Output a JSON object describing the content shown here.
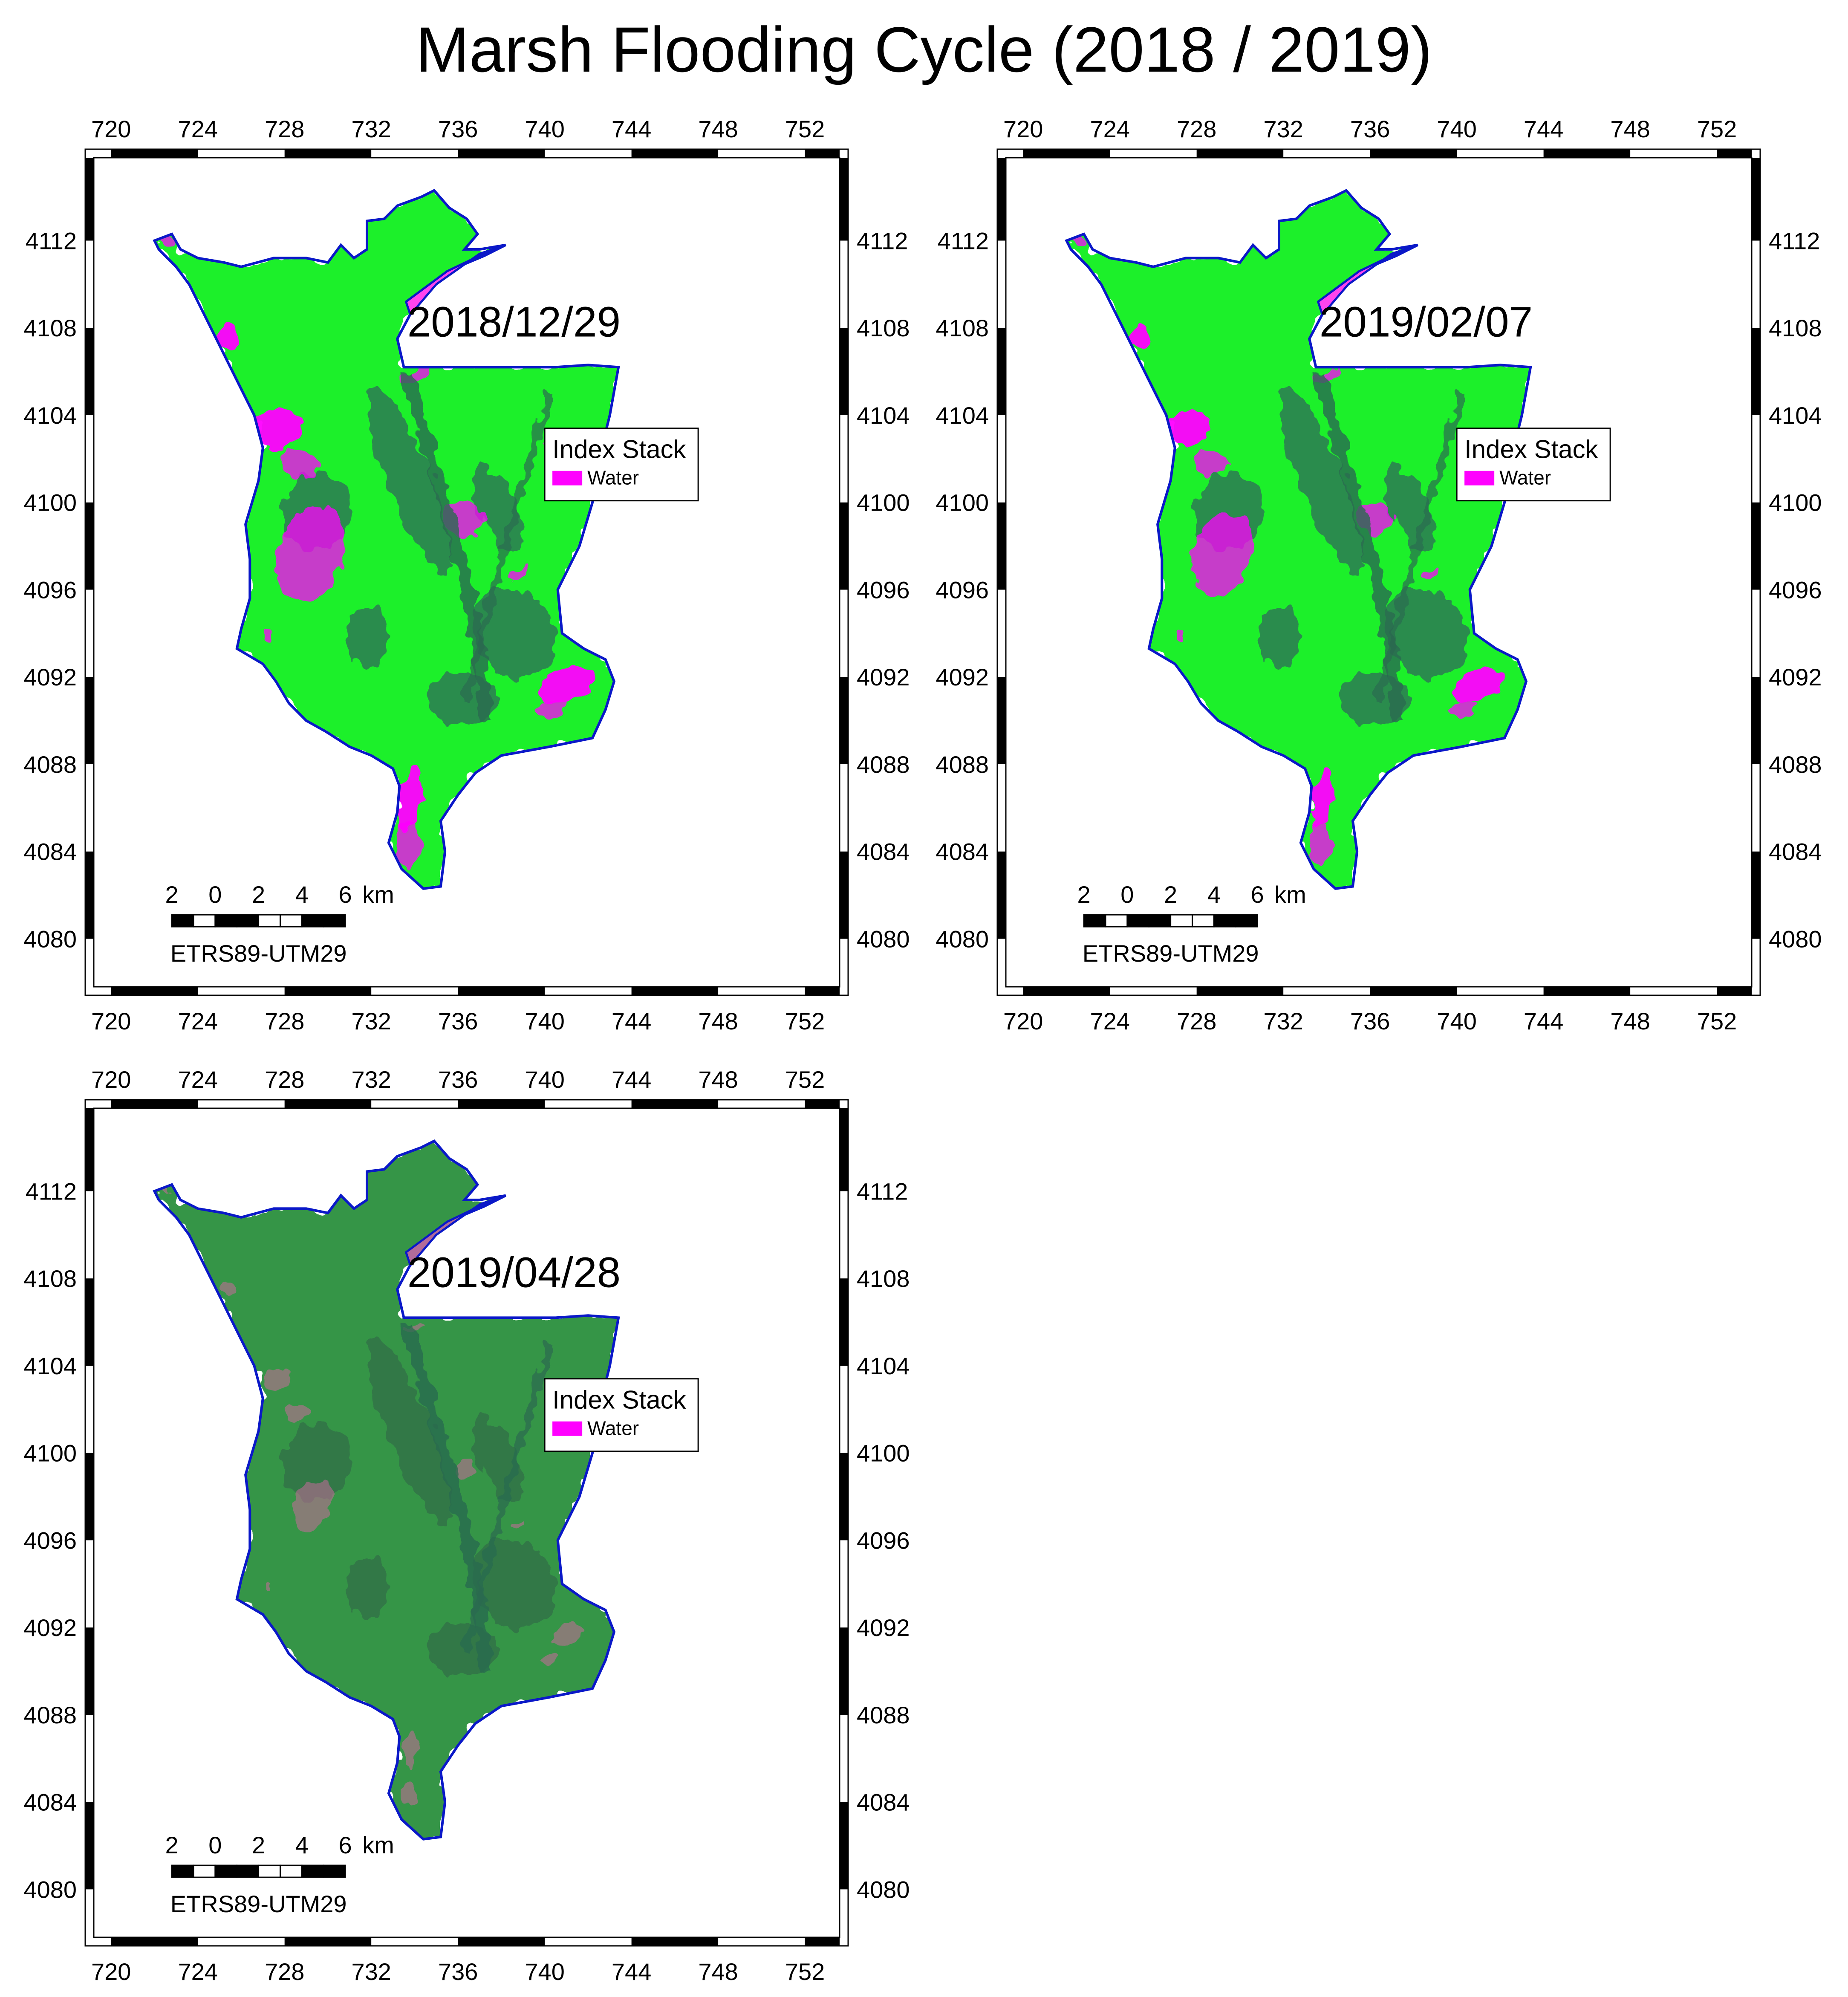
{
  "title": "Marsh Flooding Cycle (2018 / 2019)",
  "axes": {
    "x_ticks": [
      "720",
      "724",
      "728",
      "732",
      "736",
      "740",
      "744",
      "748",
      "752"
    ],
    "y_ticks": [
      "4112",
      "4108",
      "4104",
      "4100",
      "4096",
      "4092",
      "4088",
      "4084",
      "4080"
    ]
  },
  "legend": {
    "title": "Index Stack",
    "items": [
      {
        "label": "Water",
        "color": "#ff00ff"
      }
    ]
  },
  "scalebar": {
    "labels": [
      "2",
      "0",
      "2",
      "4",
      "6"
    ],
    "unit": "km",
    "crs": "ETRS89-UTM29"
  },
  "colors": {
    "boundary": "#0a18c8",
    "vegetation_bright": "#1ef02a",
    "vegetation_dark": "#2e7a4e",
    "water": "#ff00ff"
  },
  "panels": [
    {
      "date": "2018/12/29",
      "water_fraction_level": 0.9,
      "greenness": 0.95
    },
    {
      "date": "2019/02/07",
      "water_fraction_level": 0.7,
      "greenness": 0.9
    },
    {
      "date": "2019/04/28",
      "water_fraction_level": 0.15,
      "greenness": 0.45
    }
  ]
}
